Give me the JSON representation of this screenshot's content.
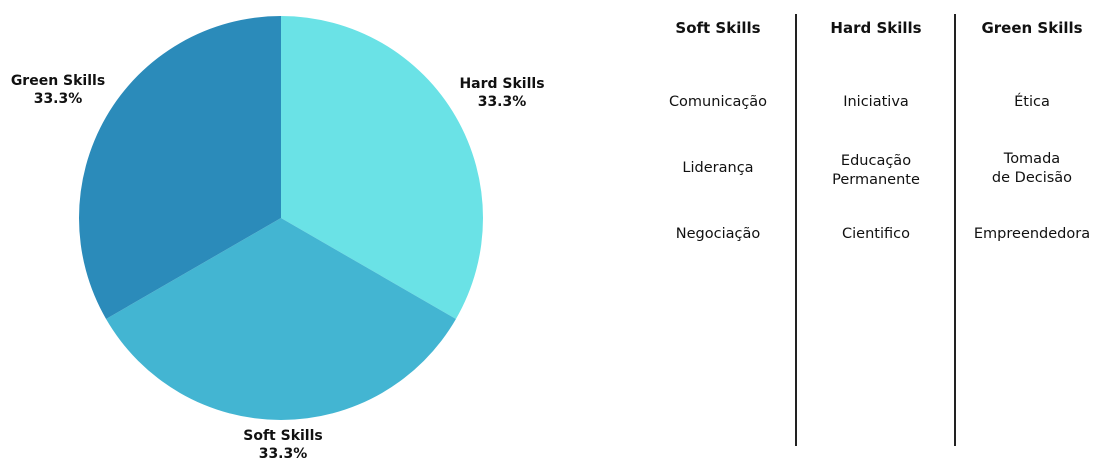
{
  "chart_data": {
    "type": "pie",
    "slices": [
      {
        "label": "Hard Skills",
        "value": 33.3,
        "display": "33.3%",
        "color": "#6ae2e6"
      },
      {
        "label": "Soft Skills",
        "value": 33.3,
        "display": "33.3%",
        "color": "#43b5d2"
      },
      {
        "label": "Green Skills",
        "value": 33.3,
        "display": "33.3%",
        "color": "#2b8bba"
      }
    ]
  },
  "table": {
    "columns": [
      {
        "header": "Soft Skills",
        "items": [
          "Comunicação",
          "Liderança",
          "Negociação"
        ]
      },
      {
        "header": "Hard Skills",
        "items": [
          "Iniciativa",
          "Educação\nPermanente",
          "Cientifico"
        ]
      },
      {
        "header": "Green Skills",
        "items": [
          "Ética",
          "Tomada\nde Decisão",
          "Empreendedora"
        ]
      }
    ]
  }
}
